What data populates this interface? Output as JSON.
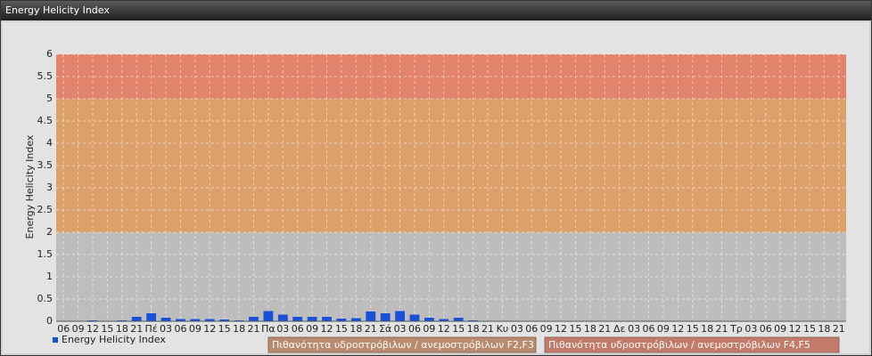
{
  "chart_data": {
    "type": "bar",
    "title": "Energy Helicity Index",
    "y_label": "Energy Helicity Index",
    "categories": [
      "06",
      "09",
      "12",
      "15",
      "18",
      "21",
      "Πέ",
      "03",
      "06",
      "09",
      "12",
      "15",
      "18",
      "21",
      "Πα",
      "03",
      "06",
      "09",
      "12",
      "15",
      "18",
      "21",
      "Σά",
      "03",
      "06",
      "09",
      "12",
      "15",
      "18",
      "21",
      "Κυ",
      "03",
      "06",
      "09",
      "12",
      "15",
      "18",
      "21",
      "Δε",
      "03",
      "06",
      "09",
      "12",
      "15",
      "18",
      "21",
      "Τρ",
      "03",
      "06",
      "09",
      "12",
      "15",
      "18",
      "21"
    ],
    "series": [
      {
        "name": "Energy Helicity Index",
        "color": "#1a4fd8",
        "values": [
          0.01,
          0.01,
          0.02,
          0.01,
          0.02,
          0.1,
          0.18,
          0.08,
          0.05,
          0.05,
          0.05,
          0.04,
          0.02,
          0.1,
          0.23,
          0.15,
          0.1,
          0.1,
          0.1,
          0.06,
          0.07,
          0.22,
          0.18,
          0.23,
          0.15,
          0.08,
          0.05,
          0.08,
          0.02,
          0.01,
          0.01,
          0.01,
          0.01,
          0.01,
          0.01,
          0.01,
          0.01,
          0.01,
          0.01,
          0.01,
          0.01,
          0.01,
          0.01,
          0.01,
          0.01,
          0.01,
          0.01,
          0.01,
          0.01,
          0.01,
          0.01,
          0.01,
          0.01,
          0.01
        ]
      }
    ],
    "bands": [
      {
        "from": 2,
        "to": 5,
        "color": "#dca06a",
        "legend_color": "#b98a6c",
        "label": "Πιθανότητα υδροστρόβιλων / ανεμοστρόβιλων F2,F3"
      },
      {
        "from": 5,
        "to": 6,
        "color": "#e2836c",
        "legend_color": "#c47a68",
        "label": "Πιθανότητα υδροστρόβιλων / ανεμοστρόβιλων F4,F5"
      }
    ],
    "ylim": [
      0,
      6
    ],
    "yticks": [
      0,
      0.5,
      1,
      1.5,
      2,
      2.5,
      3,
      3.5,
      4,
      4.5,
      5,
      5.5,
      6
    ],
    "grid": true
  }
}
